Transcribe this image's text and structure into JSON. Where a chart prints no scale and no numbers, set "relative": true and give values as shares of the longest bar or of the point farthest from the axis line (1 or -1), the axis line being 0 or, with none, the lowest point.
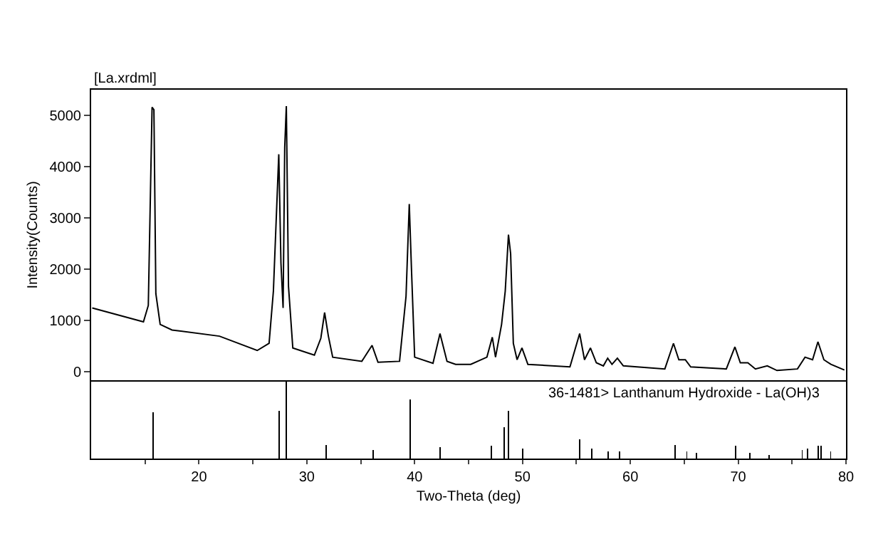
{
  "chart_data": [
    {
      "type": "line",
      "title": "[La.xrdml]",
      "ylabel": "Intensity(Counts)",
      "xlim": [
        10,
        80
      ],
      "ylim": [
        -170,
        5500
      ],
      "yticks": [
        0,
        1000,
        2000,
        3000,
        4000,
        5000
      ],
      "tick_labels": "y",
      "grid": false,
      "legend": false,
      "marker": "none",
      "line_style": "solid",
      "series": [
        {
          "color": "#000000",
          "x": [
            10.1,
            14.85,
            15.3,
            15.65,
            15.82,
            16.0,
            16.4,
            17.5,
            21.9,
            25.4,
            26.5,
            26.9,
            27.4,
            27.6,
            27.8,
            27.95,
            28.1,
            28.3,
            28.7,
            30.7,
            31.3,
            31.65,
            32.0,
            32.4,
            35.1,
            36.05,
            36.6,
            38.6,
            39.2,
            39.5,
            39.7,
            40.0,
            41.7,
            42.35,
            43.0,
            43.8,
            45.2,
            46.7,
            47.2,
            47.5,
            48.06,
            48.4,
            48.7,
            48.9,
            49.15,
            49.5,
            49.95,
            50.5,
            54.4,
            55.3,
            55.75,
            56.3,
            56.85,
            57.5,
            57.9,
            58.3,
            58.8,
            59.35,
            63.2,
            64.0,
            64.5,
            65.1,
            65.6,
            68.9,
            69.7,
            70.2,
            70.9,
            71.6,
            72.7,
            73.6,
            75.5,
            76.2,
            76.9,
            77.4,
            77.95,
            78.6,
            79.85
          ],
          "values": [
            1240,
            970,
            1290,
            5160,
            5110,
            1520,
            920,
            810,
            690,
            410,
            550,
            1570,
            4240,
            2120,
            1240,
            4370,
            5180,
            1660,
            460,
            320,
            650,
            1150,
            690,
            280,
            200,
            510,
            180,
            200,
            1470,
            3270,
            2030,
            280,
            160,
            740,
            200,
            140,
            140,
            280,
            670,
            280,
            920,
            1570,
            2670,
            2300,
            550,
            230,
            460,
            140,
            90,
            740,
            230,
            460,
            170,
            110,
            260,
            140,
            260,
            110,
            50,
            550,
            230,
            230,
            90,
            50,
            480,
            170,
            170,
            50,
            110,
            20,
            50,
            280,
            230,
            580,
            230,
            140,
            30
          ]
        }
      ]
    },
    {
      "type": "bar",
      "xlabel": "Two-Theta (deg)",
      "xlim": [
        10,
        80
      ],
      "xticks": [
        {
          "value": 15,
          "label": null
        },
        20,
        {
          "value": 25,
          "label": null
        },
        30,
        {
          "value": 35,
          "label": null
        },
        40,
        {
          "value": 45,
          "label": null
        },
        50,
        {
          "value": 55,
          "label": null
        },
        60,
        {
          "value": 65,
          "label": null
        },
        70,
        {
          "value": 75,
          "label": null
        },
        80
      ],
      "tick_labels": "x",
      "relative": true,
      "grid": false,
      "legend": false,
      "series": [
        {
          "name": "36-1481> Lanthanum Hydroxide - La(OH)3",
          "color": "#000000",
          "x": [
            15.77,
            27.42,
            28.1,
            31.79,
            36.16,
            39.57,
            42.35,
            47.13,
            48.31,
            48.72,
            50.04,
            55.32,
            56.41,
            57.96,
            59.0,
            64.15,
            65.24,
            66.15,
            69.75,
            71.07,
            72.89,
            75.94,
            76.44,
            77.4,
            77.67,
            78.58
          ],
          "values": [
            0.6,
            0.62,
            1,
            0.18,
            0.11,
            0.77,
            0.15,
            0.17,
            0.41,
            0.62,
            0.13,
            0.25,
            0.13,
            0.09,
            0.09,
            0.18,
            0.09,
            0.07,
            0.17,
            0.07,
            0.05,
            0.11,
            0.13,
            0.17,
            0.17,
            0.09
          ]
        }
      ]
    }
  ]
}
